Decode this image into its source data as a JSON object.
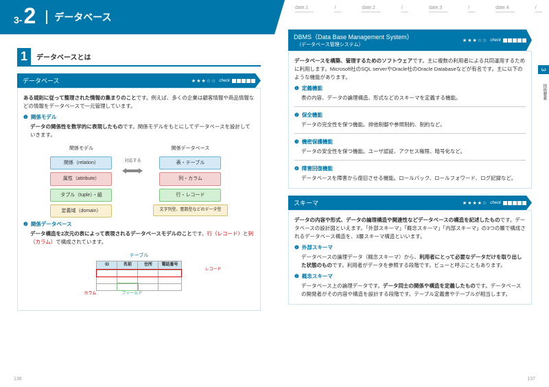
{
  "chapter": {
    "prefix": "3-",
    "num": "2",
    "title": "データベース"
  },
  "dates": [
    "date.1",
    "date.2",
    "date.3",
    "date.4",
    "date.5"
  ],
  "section1": {
    "num": "1",
    "title": "データベースとは"
  },
  "box_db": {
    "title": "データベース",
    "stars": "★★★☆☆",
    "check": "check"
  },
  "db_intro": "ある規則に従って整理された情報の集まりのこと",
  "db_intro2": "です。例えば、多くの企業は顧客情報や商品情報などの情報をデータベースで一元管理しています。",
  "b1": {
    "title": "関係モデル",
    "desc1": "データの関係性を数学的に表現したもの",
    "desc2": "です。関係モデルをもとにしてデータベースを設計していきます。"
  },
  "col1_title": "関係モデル",
  "col2_title": "関係データベース",
  "tags1": [
    "関係（relation）",
    "属性（attribute）",
    "タプル（tuple）・組",
    "定義域（domain）"
  ],
  "tags2": [
    "表・テーブル",
    "列・カラム",
    "行・レコード",
    "文字列型、整数型などのデータ型"
  ],
  "arrow_label": "対応する",
  "b2": {
    "title": "関係データベース",
    "desc1": "データ構造を2次元の表によって表現されるデータベースモデルのこと",
    "desc2": "です。",
    "desc3": "行（レコード）",
    "desc4": "と",
    "desc5": "列（カラム）",
    "desc6": "で構成されています。"
  },
  "table": {
    "label": "テーブル",
    "headers": [
      "ID",
      "名前",
      "住所",
      "電話番号"
    ],
    "anno_record": "レコード",
    "anno_column": "カラム",
    "anno_field": "フィールド"
  },
  "box_dbms": {
    "title": "DBMS（Data Base Management System）",
    "sub": "（データベース管理システム）",
    "stars": "★★★☆☆",
    "check": "check"
  },
  "dbms_intro1": "データベースを構築、管理するためのソフトウェア",
  "dbms_intro2": "です。主に複数の利用者による共同運用するために利用します。Microsoft社のSQL serverやOracle社のOracle Databaseなどが有名です。主に以下のような機能があります。",
  "dbms_items": [
    {
      "title": "定義機能",
      "desc": "表の内容、データの論理構造、形式などのスキーマを定義する機能。"
    },
    {
      "title": "保全機能",
      "desc": "データの完全性を保つ機能。排他制御や参照制約、制約など。"
    },
    {
      "title": "機密保護機能",
      "desc": "データの安全性を保つ機能。ユーザ認証、アクセス権限、暗号化など。"
    },
    {
      "title": "障害回復機能",
      "desc": "データベースを障害から復旧させる機能。ロールバック、ロールフォワード、ログ記録など。"
    }
  ],
  "box_schema": {
    "title": "スキーマ",
    "stars": "★★★★☆",
    "check": "check"
  },
  "schema_intro1": "データの内容や形式、データの論理構造や関連性などデータベースの構造を記述したもの",
  "schema_intro2": "です。データベースの設計図といえます。「外部スキーマ」「概念スキーマ」「内部スキーマ」の3つの層で構成されるデータベース構造を、3層スキーマ構造といいます。",
  "schema_items": [
    {
      "title": "外部スキーマ",
      "desc1": "データベースの論理データ（概念スキーマ）から、",
      "bold": "利用者にとって必要なデータだけを取り出した状態のもの",
      "desc2": "です。利用者がデータを参照する段階です。ビューと呼ぶこともあります。"
    },
    {
      "title": "概念スキーマ",
      "desc1": "データベース上の論理データです。",
      "bold": "データ同士の関係や構造を定義したもの",
      "desc2": "です。データベースの開発者がその内容や構造を設計する段階です。テーブル定義書やテーブルが相当します。"
    }
  ],
  "side_tab": "3",
  "side_label": "技術要素",
  "page_left": "136",
  "page_right": "137",
  "bullets": [
    "❶",
    "❷",
    "❸",
    "❹"
  ]
}
